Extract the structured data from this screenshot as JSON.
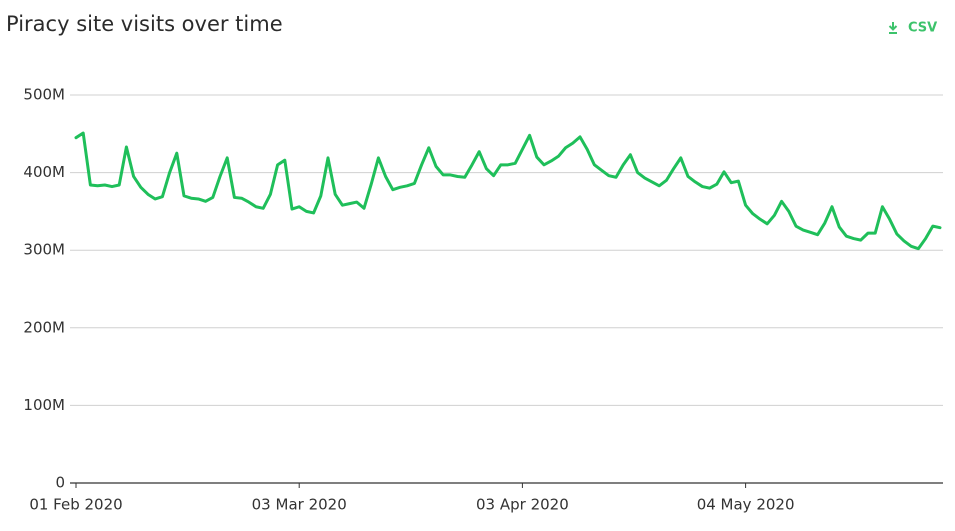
{
  "chart_data": {
    "type": "line",
    "title": "Piracy site visits over time",
    "download_label": "CSV",
    "color": "#1fbf5a",
    "grid": true,
    "x": [
      "2020-02-01",
      "2020-02-02",
      "2020-02-03",
      "2020-02-04",
      "2020-02-05",
      "2020-02-06",
      "2020-02-07",
      "2020-02-08",
      "2020-02-09",
      "2020-02-10",
      "2020-02-11",
      "2020-02-12",
      "2020-02-13",
      "2020-02-14",
      "2020-02-15",
      "2020-02-16",
      "2020-02-17",
      "2020-02-18",
      "2020-02-19",
      "2020-02-20",
      "2020-02-21",
      "2020-02-22",
      "2020-02-23",
      "2020-02-24",
      "2020-02-25",
      "2020-02-26",
      "2020-02-27",
      "2020-02-28",
      "2020-02-29",
      "2020-03-01",
      "2020-03-02",
      "2020-03-03",
      "2020-03-04",
      "2020-03-05",
      "2020-03-06",
      "2020-03-07",
      "2020-03-08",
      "2020-03-09",
      "2020-03-10",
      "2020-03-11",
      "2020-03-12",
      "2020-03-13",
      "2020-03-14",
      "2020-03-15",
      "2020-03-16",
      "2020-03-17",
      "2020-03-18",
      "2020-03-19",
      "2020-03-20",
      "2020-03-21",
      "2020-03-22",
      "2020-03-23",
      "2020-03-24",
      "2020-03-25",
      "2020-03-26",
      "2020-03-27",
      "2020-03-28",
      "2020-03-29",
      "2020-03-30",
      "2020-03-31",
      "2020-04-01",
      "2020-04-02",
      "2020-04-03",
      "2020-04-04",
      "2020-04-05",
      "2020-04-06",
      "2020-04-07",
      "2020-04-08",
      "2020-04-09",
      "2020-04-10",
      "2020-04-11",
      "2020-04-12",
      "2020-04-13",
      "2020-04-14",
      "2020-04-15",
      "2020-04-16",
      "2020-04-17",
      "2020-04-18",
      "2020-04-19",
      "2020-04-20",
      "2020-04-21",
      "2020-04-22",
      "2020-04-23",
      "2020-04-24",
      "2020-04-25",
      "2020-04-26",
      "2020-04-27",
      "2020-04-28",
      "2020-04-29",
      "2020-04-30",
      "2020-05-01",
      "2020-05-02",
      "2020-05-03",
      "2020-05-04",
      "2020-05-05",
      "2020-05-06",
      "2020-05-07",
      "2020-05-08",
      "2020-05-09",
      "2020-05-10",
      "2020-05-11",
      "2020-05-12",
      "2020-05-13",
      "2020-05-14",
      "2020-05-15",
      "2020-05-16",
      "2020-05-17",
      "2020-05-18",
      "2020-05-19",
      "2020-05-20",
      "2020-05-21",
      "2020-05-22",
      "2020-05-23",
      "2020-05-24",
      "2020-05-25",
      "2020-05-26",
      "2020-05-27",
      "2020-05-28",
      "2020-05-29",
      "2020-05-30",
      "2020-05-31"
    ],
    "values": [
      445000000,
      451000000,
      384000000,
      383000000,
      384000000,
      382000000,
      384000000,
      433000000,
      395000000,
      381000000,
      372000000,
      366000000,
      369000000,
      400000000,
      425000000,
      370000000,
      367000000,
      366000000,
      363000000,
      368000000,
      395000000,
      419000000,
      368000000,
      367000000,
      362000000,
      356000000,
      354000000,
      372000000,
      410000000,
      416000000,
      353000000,
      356000000,
      350000000,
      348000000,
      370000000,
      419000000,
      372000000,
      358000000,
      360000000,
      362000000,
      354000000,
      385000000,
      419000000,
      395000000,
      378000000,
      381000000,
      383000000,
      386000000,
      410000000,
      432000000,
      408000000,
      397000000,
      397000000,
      395000000,
      394000000,
      410000000,
      427000000,
      405000000,
      396000000,
      410000000,
      410000000,
      412000000,
      430000000,
      448000000,
      420000000,
      410000000,
      415000000,
      421000000,
      432000000,
      438000000,
      446000000,
      430000000,
      410000000,
      403000000,
      396000000,
      394000000,
      410000000,
      423000000,
      400000000,
      393000000,
      388000000,
      383000000,
      390000000,
      405000000,
      419000000,
      395000000,
      388000000,
      382000000,
      380000000,
      385000000,
      401000000,
      387000000,
      389000000,
      358000000,
      347000000,
      340000000,
      334000000,
      345000000,
      363000000,
      350000000,
      331000000,
      326000000,
      323000000,
      320000000,
      335000000,
      356000000,
      330000000,
      318000000,
      315000000,
      313000000,
      322000000,
      322000000,
      356000000,
      340000000,
      321000000,
      312000000,
      305000000,
      302000000,
      315000000,
      331000000,
      329000000
    ],
    "xlim": [
      "2020-02-01",
      "2020-05-31"
    ],
    "xticks": [
      {
        "value": "2020-02-01",
        "label": "01 Feb 2020"
      },
      {
        "value": "2020-03-03",
        "label": "03 Mar 2020"
      },
      {
        "value": "2020-04-03",
        "label": "03 Apr 2020"
      },
      {
        "value": "2020-05-04",
        "label": "04 May 2020"
      }
    ],
    "ylim": [
      0,
      500000000
    ],
    "yticks": [
      0,
      {
        "value": 100000000,
        "label": "100M"
      },
      {
        "value": 200000000,
        "label": "200M"
      },
      {
        "value": 300000000,
        "label": "300M"
      },
      {
        "value": 400000000,
        "label": "400M"
      },
      {
        "value": 500000000,
        "label": "500M"
      }
    ]
  }
}
